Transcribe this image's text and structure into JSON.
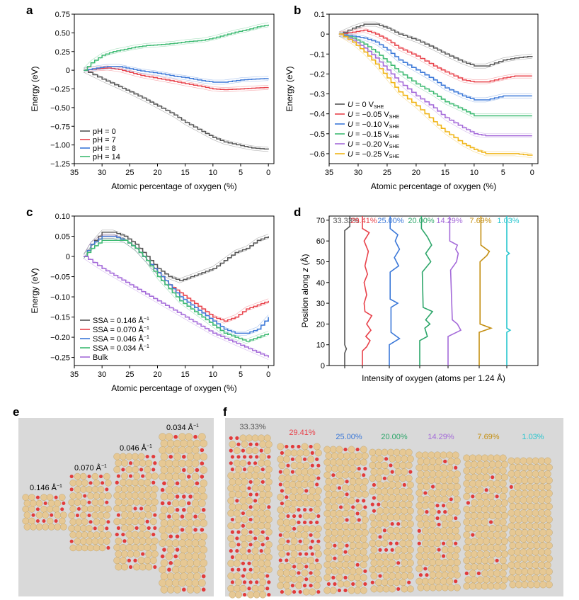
{
  "figure": {
    "panel_letters": [
      "a",
      "b",
      "c",
      "d",
      "e",
      "f"
    ]
  },
  "colors": {
    "black": "#555555",
    "red": "#e8414a",
    "blue": "#3b78d8",
    "green": "#3dba72",
    "green2": "#2da66a",
    "purple": "#a46ad9",
    "yellow": "#f2c218",
    "orange": "#c48f12",
    "cyan": "#27c6cf",
    "gold": "#f0b414",
    "grey_bg": "#d9d9d9",
    "atom": "#e6c894",
    "oxygen": "#e23b3b"
  },
  "chart_data": [
    {
      "id": "a",
      "type": "line",
      "xlabel": "Atomic percentage of oxygen (%)",
      "ylabel": "Energy (eV)",
      "xlim": [
        35,
        -1
      ],
      "ylim": [
        -1.25,
        0.75
      ],
      "xticks": [
        35,
        30,
        25,
        20,
        15,
        10,
        5,
        0
      ],
      "yticks": [
        0.75,
        0.5,
        0.25,
        0,
        -0.25,
        -0.5,
        -0.75,
        -1.0,
        -1.25
      ],
      "yticklabels": [
        "0.75",
        "0.50",
        "0.25",
        "0",
        "−0.25",
        "−0.50",
        "−0.75",
        "−1.00",
        "−1.25"
      ],
      "legend": "bottom-left",
      "series": [
        {
          "name": "pH = 0",
          "color": "black",
          "x": [
            33.3,
            30,
            27,
            25,
            22,
            20,
            17,
            15,
            12,
            10,
            8,
            5,
            3,
            0
          ],
          "y": [
            0,
            -0.12,
            -0.22,
            -0.29,
            -0.4,
            -0.48,
            -0.6,
            -0.7,
            -0.82,
            -0.9,
            -0.96,
            -1.01,
            -1.04,
            -1.06
          ]
        },
        {
          "name": "pH = 7",
          "color": "red",
          "x": [
            33.3,
            31,
            29,
            27,
            25,
            23,
            20,
            17,
            15,
            12,
            10,
            8,
            5,
            3,
            0
          ],
          "y": [
            0,
            0.02,
            0.03,
            0.01,
            -0.03,
            -0.07,
            -0.11,
            -0.15,
            -0.18,
            -0.22,
            -0.25,
            -0.26,
            -0.25,
            -0.24,
            -0.23
          ]
        },
        {
          "name": "pH = 8",
          "color": "blue",
          "x": [
            33.3,
            31,
            29,
            27,
            25,
            23,
            20,
            17,
            15,
            12,
            10,
            8,
            5,
            3,
            0
          ],
          "y": [
            0,
            0.03,
            0.05,
            0.05,
            0.02,
            -0.01,
            -0.04,
            -0.08,
            -0.1,
            -0.14,
            -0.16,
            -0.16,
            -0.13,
            -0.12,
            -0.11
          ]
        },
        {
          "name": "pH = 14",
          "color": "green",
          "x": [
            33.3,
            32,
            30,
            28,
            26,
            24,
            22,
            20,
            17,
            15,
            12,
            10,
            8,
            6,
            4,
            2,
            0
          ],
          "y": [
            0,
            0.1,
            0.2,
            0.25,
            0.28,
            0.31,
            0.33,
            0.34,
            0.36,
            0.38,
            0.4,
            0.43,
            0.47,
            0.51,
            0.54,
            0.58,
            0.61
          ]
        }
      ]
    },
    {
      "id": "b",
      "type": "line",
      "xlabel": "Atomic percentage of oxygen (%)",
      "ylabel": "Energy (eV)",
      "xlim": [
        35,
        -1
      ],
      "ylim": [
        -0.65,
        0.1
      ],
      "xticks": [
        35,
        30,
        25,
        20,
        15,
        10,
        5,
        0
      ],
      "yticks": [
        0.1,
        0,
        -0.1,
        -0.2,
        -0.3,
        -0.4,
        -0.5,
        -0.6
      ],
      "yticklabels": [
        "0.1",
        "0",
        "−0.1",
        "−0.2",
        "−0.3",
        "−0.4",
        "−0.5",
        "−0.6"
      ],
      "legend": "bottom-left",
      "legend_labels": [
        {
          "pre": "U",
          "mid": " = 0 V",
          "sub": "SHE"
        },
        {
          "pre": "U",
          "mid": " = −0.05 V",
          "sub": "SHE"
        },
        {
          "pre": "U",
          "mid": " = −0.10 V",
          "sub": "SHE"
        },
        {
          "pre": "U",
          "mid": " = −0.15 V",
          "sub": "SHE"
        },
        {
          "pre": "U",
          "mid": " = −0.20 V",
          "sub": "SHE"
        },
        {
          "pre": "U",
          "mid": " = −0.25 V",
          "sub": "SHE"
        }
      ],
      "series": [
        {
          "color": "black",
          "x": [
            33.3,
            31,
            29,
            27,
            25,
            23,
            20,
            17,
            15,
            12,
            10,
            8,
            5,
            3,
            0
          ],
          "y": [
            0,
            0.03,
            0.05,
            0.05,
            0.03,
            0.0,
            -0.03,
            -0.07,
            -0.1,
            -0.14,
            -0.16,
            -0.16,
            -0.13,
            -0.12,
            -0.11
          ]
        },
        {
          "color": "red",
          "x": [
            33.3,
            31,
            29,
            27,
            25,
            23,
            20,
            17,
            15,
            12,
            10,
            8,
            5,
            3,
            0
          ],
          "y": [
            0,
            0.01,
            0.02,
            0.0,
            -0.03,
            -0.07,
            -0.11,
            -0.16,
            -0.19,
            -0.23,
            -0.24,
            -0.24,
            -0.22,
            -0.21,
            -0.21
          ]
        },
        {
          "color": "blue",
          "x": [
            33.3,
            31,
            29,
            27,
            25,
            23,
            20,
            17,
            15,
            12,
            10,
            8,
            5,
            3,
            0
          ],
          "y": [
            0,
            -0.01,
            -0.02,
            -0.04,
            -0.08,
            -0.13,
            -0.18,
            -0.23,
            -0.27,
            -0.31,
            -0.33,
            -0.33,
            -0.31,
            -0.31,
            -0.31
          ]
        },
        {
          "color": "green",
          "x": [
            33.3,
            31,
            29,
            27,
            25,
            23,
            20,
            17,
            15,
            12,
            10,
            8,
            5,
            3,
            0
          ],
          "y": [
            0,
            -0.02,
            -0.05,
            -0.09,
            -0.14,
            -0.19,
            -0.25,
            -0.3,
            -0.34,
            -0.38,
            -0.41,
            -0.41,
            -0.41,
            -0.41,
            -0.41
          ]
        },
        {
          "color": "purple",
          "x": [
            33.3,
            31,
            29,
            27,
            25,
            23,
            20,
            17,
            15,
            12,
            10,
            8,
            5,
            3,
            0
          ],
          "y": [
            0,
            -0.03,
            -0.07,
            -0.12,
            -0.18,
            -0.24,
            -0.31,
            -0.37,
            -0.42,
            -0.47,
            -0.5,
            -0.51,
            -0.51,
            -0.51,
            -0.51
          ]
        },
        {
          "color": "gold",
          "x": [
            33.3,
            31,
            29,
            27,
            25,
            23,
            20,
            17,
            15,
            12,
            10,
            8,
            5,
            3,
            0
          ],
          "y": [
            0,
            -0.04,
            -0.09,
            -0.15,
            -0.22,
            -0.29,
            -0.36,
            -0.44,
            -0.49,
            -0.55,
            -0.58,
            -0.6,
            -0.6,
            -0.6,
            -0.61
          ]
        }
      ]
    },
    {
      "id": "c",
      "type": "line",
      "xlabel": "Atomic percentage of oxygen (%)",
      "ylabel": "Energy (eV)",
      "xlim": [
        35,
        -1
      ],
      "ylim": [
        -0.27,
        0.1
      ],
      "xticks": [
        35,
        30,
        25,
        20,
        15,
        10,
        5,
        0
      ],
      "yticks": [
        0.1,
        0.05,
        0,
        -0.05,
        -0.1,
        -0.15,
        -0.2,
        -0.25
      ],
      "yticklabels": [
        "0.10",
        "0.05",
        "0",
        "−0.05",
        "−0.10",
        "−0.15",
        "−0.20",
        "−0.25"
      ],
      "legend": "bottom-left",
      "legend_labels": [
        {
          "mid": "SSA = 0.146 Å",
          "sup": "−1"
        },
        {
          "mid": "SSA = 0.070 Å",
          "sup": "−1"
        },
        {
          "mid": "SSA = 0.046 Å",
          "sup": "−1"
        },
        {
          "mid": "SSA = 0.034 Å",
          "sup": "−1"
        },
        {
          "mid": "Bulk",
          "sup": ""
        }
      ],
      "series": [
        {
          "color": "black",
          "x": [
            33.3,
            32,
            30,
            28,
            26,
            24,
            22,
            20,
            18,
            16,
            14,
            12,
            10,
            8,
            6,
            4,
            2,
            0
          ],
          "y": [
            0,
            0.03,
            0.06,
            0.06,
            0.05,
            0.03,
            0.0,
            -0.03,
            -0.05,
            -0.06,
            -0.05,
            -0.04,
            -0.03,
            -0.01,
            0.01,
            0.02,
            0.04,
            0.05
          ]
        },
        {
          "color": "red",
          "x": [
            33.3,
            32,
            30,
            28,
            26,
            24,
            22,
            20,
            18,
            16,
            14,
            12,
            10,
            8,
            6,
            4,
            2,
            0
          ],
          "y": [
            0,
            0.03,
            0.05,
            0.05,
            0.04,
            0.02,
            -0.01,
            -0.04,
            -0.07,
            -0.09,
            -0.11,
            -0.13,
            -0.15,
            -0.16,
            -0.15,
            -0.13,
            -0.12,
            -0.11
          ]
        },
        {
          "color": "blue",
          "x": [
            33.3,
            32,
            30,
            28,
            26,
            24,
            22,
            20,
            18,
            16,
            14,
            12,
            10,
            8,
            6,
            4,
            2,
            0
          ],
          "y": [
            0,
            0.03,
            0.05,
            0.05,
            0.04,
            0.02,
            -0.01,
            -0.04,
            -0.07,
            -0.1,
            -0.12,
            -0.14,
            -0.16,
            -0.18,
            -0.19,
            -0.19,
            -0.18,
            -0.15
          ]
        },
        {
          "color": "green",
          "x": [
            33.3,
            32,
            30,
            28,
            26,
            24,
            22,
            20,
            18,
            16,
            14,
            12,
            10,
            8,
            6,
            4,
            2,
            0
          ],
          "y": [
            0,
            0.02,
            0.04,
            0.04,
            0.04,
            0.02,
            -0.01,
            -0.05,
            -0.08,
            -0.11,
            -0.13,
            -0.15,
            -0.17,
            -0.19,
            -0.2,
            -0.21,
            -0.2,
            -0.19
          ]
        },
        {
          "color": "purple",
          "x": [
            33.3,
            30,
            25,
            20,
            15,
            10,
            5,
            0
          ],
          "y": [
            0,
            -0.03,
            -0.07,
            -0.11,
            -0.15,
            -0.19,
            -0.22,
            -0.25
          ]
        }
      ]
    },
    {
      "id": "d",
      "type": "line",
      "xlabel": "Intensity of oxygen (atoms per 1.24 Å)",
      "ylabel_pre": "Position along ",
      "ylabel_var": "z",
      "ylabel_post": " (Å)",
      "ylim": [
        0,
        72
      ],
      "yticks": [
        0,
        10,
        20,
        30,
        40,
        50,
        60,
        70
      ],
      "profiles": [
        {
          "label": "33.33%",
          "color": "black"
        },
        {
          "label": "29.41%",
          "color": "red"
        },
        {
          "label": "25.00%",
          "color": "blue"
        },
        {
          "label": "20.00%",
          "color": "green2"
        },
        {
          "label": "14.29%",
          "color": "purple"
        },
        {
          "label": "7.69%",
          "color": "orange"
        },
        {
          "label": "1.03%",
          "color": "cyan"
        }
      ]
    }
  ],
  "panel_e": {
    "labels": [
      {
        "value": "0.146 Å",
        "sup": "−1"
      },
      {
        "value": "0.070 Å",
        "sup": "−1"
      },
      {
        "value": "0.046 Å",
        "sup": "−1"
      },
      {
        "value": "0.034 Å",
        "sup": "−1"
      }
    ]
  },
  "panel_f": {
    "labels": [
      {
        "value": "33.33%",
        "color": "black"
      },
      {
        "value": "29.41%",
        "color": "red"
      },
      {
        "value": "25.00%",
        "color": "blue"
      },
      {
        "value": "20.00%",
        "color": "green2"
      },
      {
        "value": "14.29%",
        "color": "purple"
      },
      {
        "value": "7.69%",
        "color": "orange"
      },
      {
        "value": "1.03%",
        "color": "cyan"
      }
    ]
  }
}
